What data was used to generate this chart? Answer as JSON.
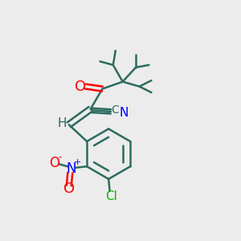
{
  "bg_color": "#ececec",
  "bond_color": "#2d6b5e",
  "atom_colors": {
    "O": "#ff0000",
    "N_nitrile": "#0000ff",
    "N_nitro": "#0000ff",
    "Cl": "#00bb00",
    "C": "#2d6b5e",
    "H": "#2d6b5e"
  },
  "font_size": 11,
  "line_width": 1.8
}
